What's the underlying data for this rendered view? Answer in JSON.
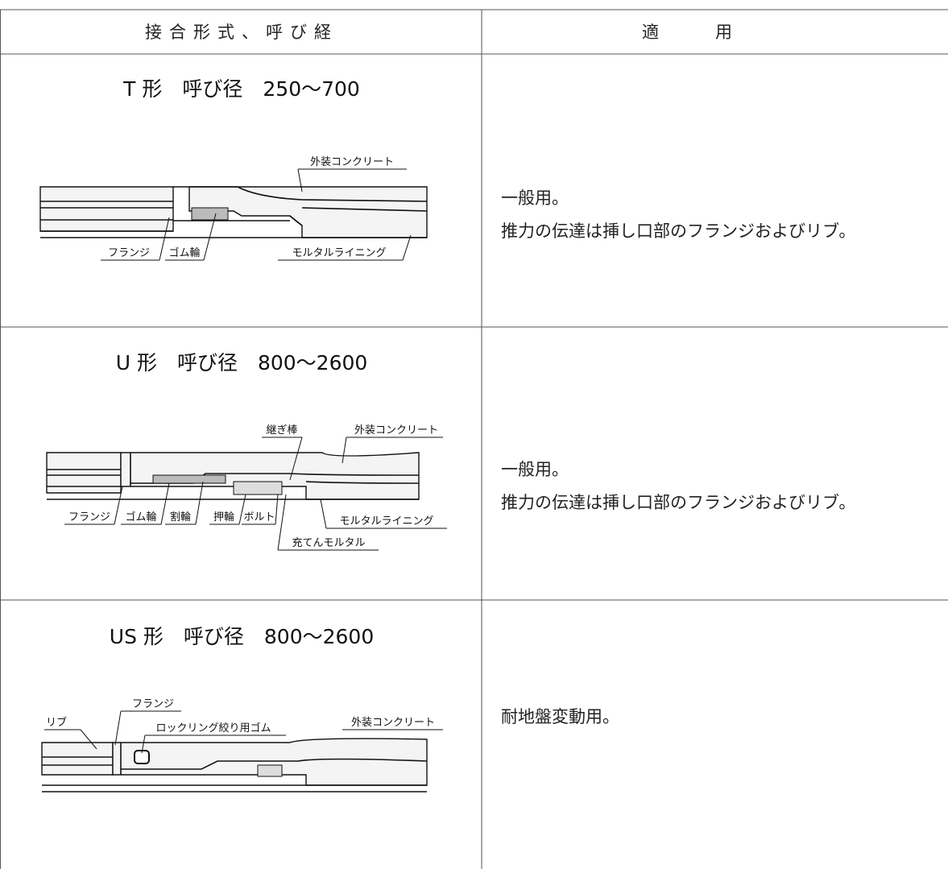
{
  "table": {
    "header": [
      "接合形式、呼び経",
      "適用"
    ],
    "rows": [
      {
        "title": "T 形　呼び径　250〜700",
        "labels": [
          "外装コンクリート",
          "フランジ",
          "ゴム輪",
          "モルタルライニング"
        ],
        "usage": [
          "一般用。",
          "推力の伝達は挿し口部のフランジおよびリブ。"
        ]
      },
      {
        "title": "U 形　呼び径　800〜2600",
        "labels": [
          "継ぎ棒",
          "外装コンクリート",
          "フランジ",
          "ゴム輪",
          "割輪",
          "押輪",
          "ボルト",
          "モルタルライニング",
          "充てんモルタル"
        ],
        "usage": [
          "一般用。",
          "推力の伝達は挿し口部のフランジおよびリブ。"
        ]
      },
      {
        "title": "US 形　呼び径　800〜2600",
        "labels": [
          "フランジ",
          "リブ",
          "ロックリング絞り用ゴム",
          "外装コンクリート"
        ],
        "usage": [
          "耐地盤変動用。"
        ]
      }
    ]
  }
}
